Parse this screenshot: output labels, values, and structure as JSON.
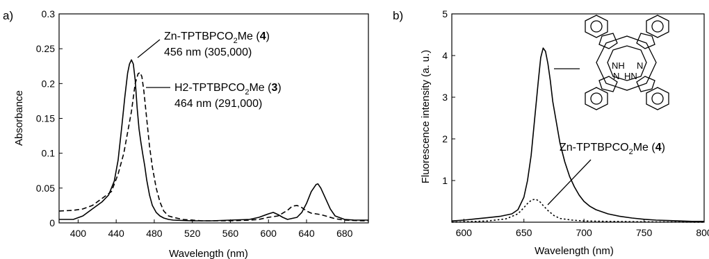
{
  "chart_data": [
    {
      "type": "line",
      "panel_label": "a)",
      "xlabel": "Wavelength (nm)",
      "ylabel": "Absorbance",
      "xlim": [
        380,
        705
      ],
      "ylim": [
        0,
        0.3
      ],
      "xticks": [
        "400",
        "440",
        "480",
        "520",
        "560",
        "600",
        "640",
        "680"
      ],
      "yticks": [
        "0",
        "0.05",
        "0.1",
        "0.15",
        "0.2",
        "0.25",
        "0.3"
      ],
      "grid": false,
      "annotations": [
        {
          "prefix": "Zn-TPTBPCO",
          "sub": "2",
          "suffix": "Me (",
          "compound": "4",
          "close": ")",
          "detail": "456 nm (305,000)"
        },
        {
          "prefix": "H2-TPTBPCO",
          "sub": "2",
          "suffix": "Me (",
          "compound": "3",
          "close": ")",
          "detail": "464 nm (291,000)"
        }
      ],
      "series": [
        {
          "style": "solid",
          "color": "#000000",
          "x": [
            380,
            395,
            405,
            415,
            425,
            432,
            438,
            442,
            446,
            449,
            452,
            454,
            456,
            458,
            460,
            462,
            464,
            466,
            468,
            470,
            472,
            475,
            478,
            482,
            486,
            490,
            495,
            500,
            520,
            540,
            560,
            580,
            590,
            600,
            605,
            610,
            615,
            620,
            630,
            635,
            640,
            645,
            650,
            652,
            655,
            660,
            665,
            670,
            680,
            690,
            700,
            705
          ],
          "y": [
            0.005,
            0.005,
            0.01,
            0.02,
            0.03,
            0.04,
            0.06,
            0.09,
            0.14,
            0.18,
            0.215,
            0.228,
            0.234,
            0.228,
            0.205,
            0.165,
            0.135,
            0.115,
            0.098,
            0.082,
            0.062,
            0.04,
            0.025,
            0.015,
            0.01,
            0.007,
            0.005,
            0.004,
            0.003,
            0.003,
            0.004,
            0.005,
            0.008,
            0.013,
            0.015,
            0.012,
            0.008,
            0.005,
            0.008,
            0.015,
            0.028,
            0.045,
            0.055,
            0.056,
            0.05,
            0.035,
            0.02,
            0.01,
            0.005,
            0.004,
            0.004,
            0.004
          ]
        },
        {
          "style": "dashed",
          "color": "#000000",
          "x": [
            380,
            395,
            405,
            415,
            425,
            435,
            442,
            448,
            452,
            456,
            460,
            463,
            465,
            467,
            469,
            472,
            475,
            478,
            482,
            486,
            490,
            495,
            500,
            510,
            530,
            560,
            580,
            590,
            600,
            610,
            620,
            625,
            630,
            635,
            640,
            645,
            650,
            655,
            660,
            670,
            680,
            700,
            705
          ],
          "y": [
            0.017,
            0.018,
            0.02,
            0.025,
            0.035,
            0.045,
            0.07,
            0.1,
            0.13,
            0.16,
            0.2,
            0.214,
            0.216,
            0.21,
            0.19,
            0.15,
            0.11,
            0.08,
            0.05,
            0.03,
            0.017,
            0.01,
            0.008,
            0.005,
            0.003,
            0.003,
            0.004,
            0.005,
            0.008,
            0.01,
            0.018,
            0.024,
            0.025,
            0.022,
            0.017,
            0.014,
            0.013,
            0.012,
            0.01,
            0.006,
            0.004,
            0.003,
            0.003
          ]
        }
      ]
    },
    {
      "type": "line",
      "panel_label": "b)",
      "xlabel": "Wavelength (nm)",
      "ylabel": "Fluorescence intensity (a. u.)",
      "xlim": [
        590,
        800
      ],
      "ylim": [
        0,
        5
      ],
      "xticks": [
        "600",
        "650",
        "700",
        "750",
        "800"
      ],
      "yticks": [
        "1",
        "2",
        "3",
        "4",
        "5"
      ],
      "grid": false,
      "annotations": [
        {
          "prefix": "Zn-TPTBPCO",
          "sub": "2",
          "suffix": "Me (",
          "compound": "4",
          "close": ")"
        }
      ],
      "structure_labels": [
        "NH",
        "N",
        "N",
        "HN"
      ],
      "series": [
        {
          "style": "solid",
          "color": "#000000",
          "x": [
            590,
            600,
            610,
            620,
            630,
            640,
            645,
            650,
            653,
            656,
            659,
            662,
            664,
            666,
            668,
            670,
            672,
            674,
            677,
            680,
            684,
            688,
            692,
            696,
            700,
            705,
            710,
            720,
            730,
            740,
            750,
            760,
            770,
            780,
            790,
            800
          ],
          "y": [
            0.03,
            0.05,
            0.08,
            0.11,
            0.14,
            0.2,
            0.3,
            0.6,
            1.0,
            1.6,
            2.5,
            3.4,
            3.95,
            4.18,
            4.1,
            3.8,
            3.4,
            2.9,
            2.4,
            1.9,
            1.45,
            1.1,
            0.85,
            0.65,
            0.5,
            0.38,
            0.3,
            0.2,
            0.14,
            0.1,
            0.07,
            0.05,
            0.04,
            0.03,
            0.02,
            0.02
          ]
        },
        {
          "style": "dotted",
          "color": "#000000",
          "x": [
            590,
            600,
            620,
            635,
            645,
            650,
            654,
            657,
            660,
            663,
            666,
            670,
            675,
            680,
            690,
            700,
            720,
            750,
            800
          ],
          "y": [
            0.0,
            0.01,
            0.03,
            0.08,
            0.2,
            0.35,
            0.48,
            0.54,
            0.55,
            0.5,
            0.4,
            0.28,
            0.16,
            0.09,
            0.05,
            0.03,
            0.02,
            0.01,
            0.0
          ]
        }
      ]
    }
  ]
}
